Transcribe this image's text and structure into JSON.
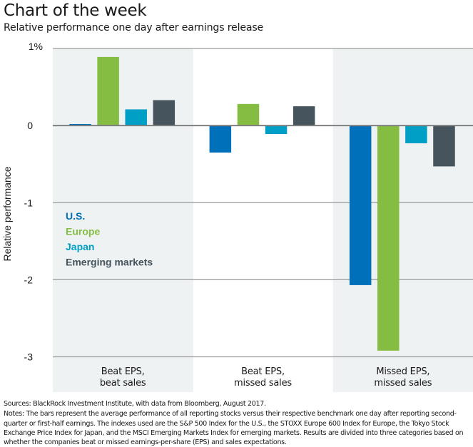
{
  "header": {
    "title": "Chart of the week",
    "subtitle": "Relative performance one day after earnings release"
  },
  "colors": {
    "us": "#0070BA",
    "europe": "#84BD41",
    "japan": "#00A0C6",
    "emerging": "#46545E",
    "panel_shade": "#EEF2F3",
    "gridline": "#9A9A9A"
  },
  "chart_data": {
    "type": "bar",
    "title": "Chart of the week",
    "subtitle": "Relative performance one day after earnings release",
    "xlabel": "",
    "ylabel": "Relative performance",
    "ylim": [
      -3,
      1
    ],
    "yticks": [
      1,
      0,
      -1,
      -2,
      -3
    ],
    "ytick_labels": [
      "1%",
      "0",
      "-1",
      "-2",
      "-3"
    ],
    "grid": true,
    "legend_position": "left-middle",
    "categories": [
      [
        "Beat EPS,",
        "beat sales"
      ],
      [
        "Beat EPS,",
        "missed sales"
      ],
      [
        "Missed EPS,",
        "missed sales"
      ]
    ],
    "series": [
      {
        "name": "U.S.",
        "color": "#0070BA",
        "values": [
          0.02,
          -0.35,
          -2.07
        ]
      },
      {
        "name": "Europe",
        "color": "#84BD41",
        "values": [
          0.89,
          0.28,
          -2.92
        ]
      },
      {
        "name": "Japan",
        "color": "#00A0C6",
        "values": [
          0.21,
          -0.11,
          -0.23
        ]
      },
      {
        "name": "Emerging markets",
        "color": "#46545E",
        "values": [
          0.33,
          0.25,
          -0.53
        ]
      }
    ]
  },
  "footer": {
    "sources": "Sources: BlackRock Investment Institute, with data from Bloomberg, August 2017.",
    "notes": "Notes: The bars represent the average performance of all reporting stocks versus their respective benchmark one day after reporting second-quarter or first-half earnings. The indexes used are the S&P 500 Index for the U.S., the STOXX Europe 600 Index for Europe, the Tokyo Stock Exchange Price Index for Japan, and the MSCI Emerging Markets Index for emerging markets. Results are divided into three categories based on whether the companies beat or missed earnings-per-share (EPS) and sales expectations."
  }
}
